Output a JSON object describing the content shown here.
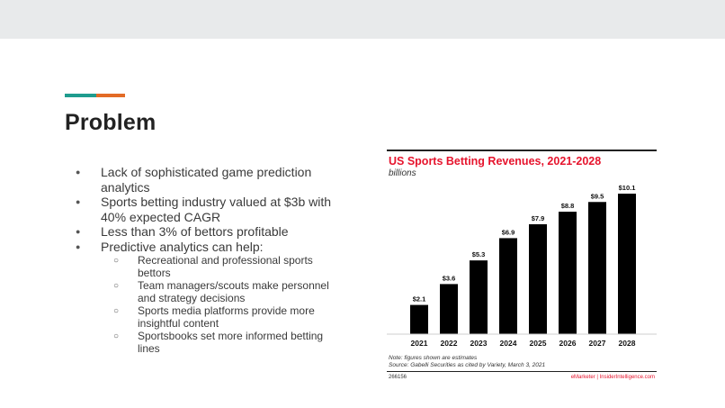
{
  "slide": {
    "title": "Problem",
    "bullets": [
      "Lack of sophisticated game prediction analytics",
      "Sports betting industry valued at $3b with 40% expected CAGR",
      "Less than 3% of bettors profitable",
      "Predictive analytics can help:"
    ],
    "sub_bullets": [
      "Recreational and professional sports bettors",
      "Team managers/scouts make personnel and strategy decisions",
      "Sports media platforms provide more insightful content",
      "Sportsbooks set more informed betting lines"
    ],
    "colors": {
      "accent_teal": "#1f9c8e",
      "accent_orange": "#e36b26",
      "chart_title": "#e6142d",
      "bar": "#000000"
    }
  },
  "chart_data": {
    "type": "bar",
    "title": "US Sports Betting Revenues, 2021-2028",
    "subtitle": "billions",
    "categories": [
      "2021",
      "2022",
      "2023",
      "2024",
      "2025",
      "2026",
      "2027",
      "2028"
    ],
    "values": [
      2.1,
      3.6,
      5.3,
      6.9,
      7.9,
      8.8,
      9.5,
      10.1
    ],
    "data_labels": [
      "$2.1",
      "$3.6",
      "$5.3",
      "$6.9",
      "$7.9",
      "$8.8",
      "$9.5",
      "$10.1"
    ],
    "ylim": [
      0,
      10.1
    ],
    "grid": false,
    "note": "Note: figures shown are estimates",
    "source": "Source: Gabelli Securities as cited by Variety, March 3, 2021",
    "footer_id": "266156",
    "footer_brand": "eMarketer | InsiderIntelligence.com"
  }
}
